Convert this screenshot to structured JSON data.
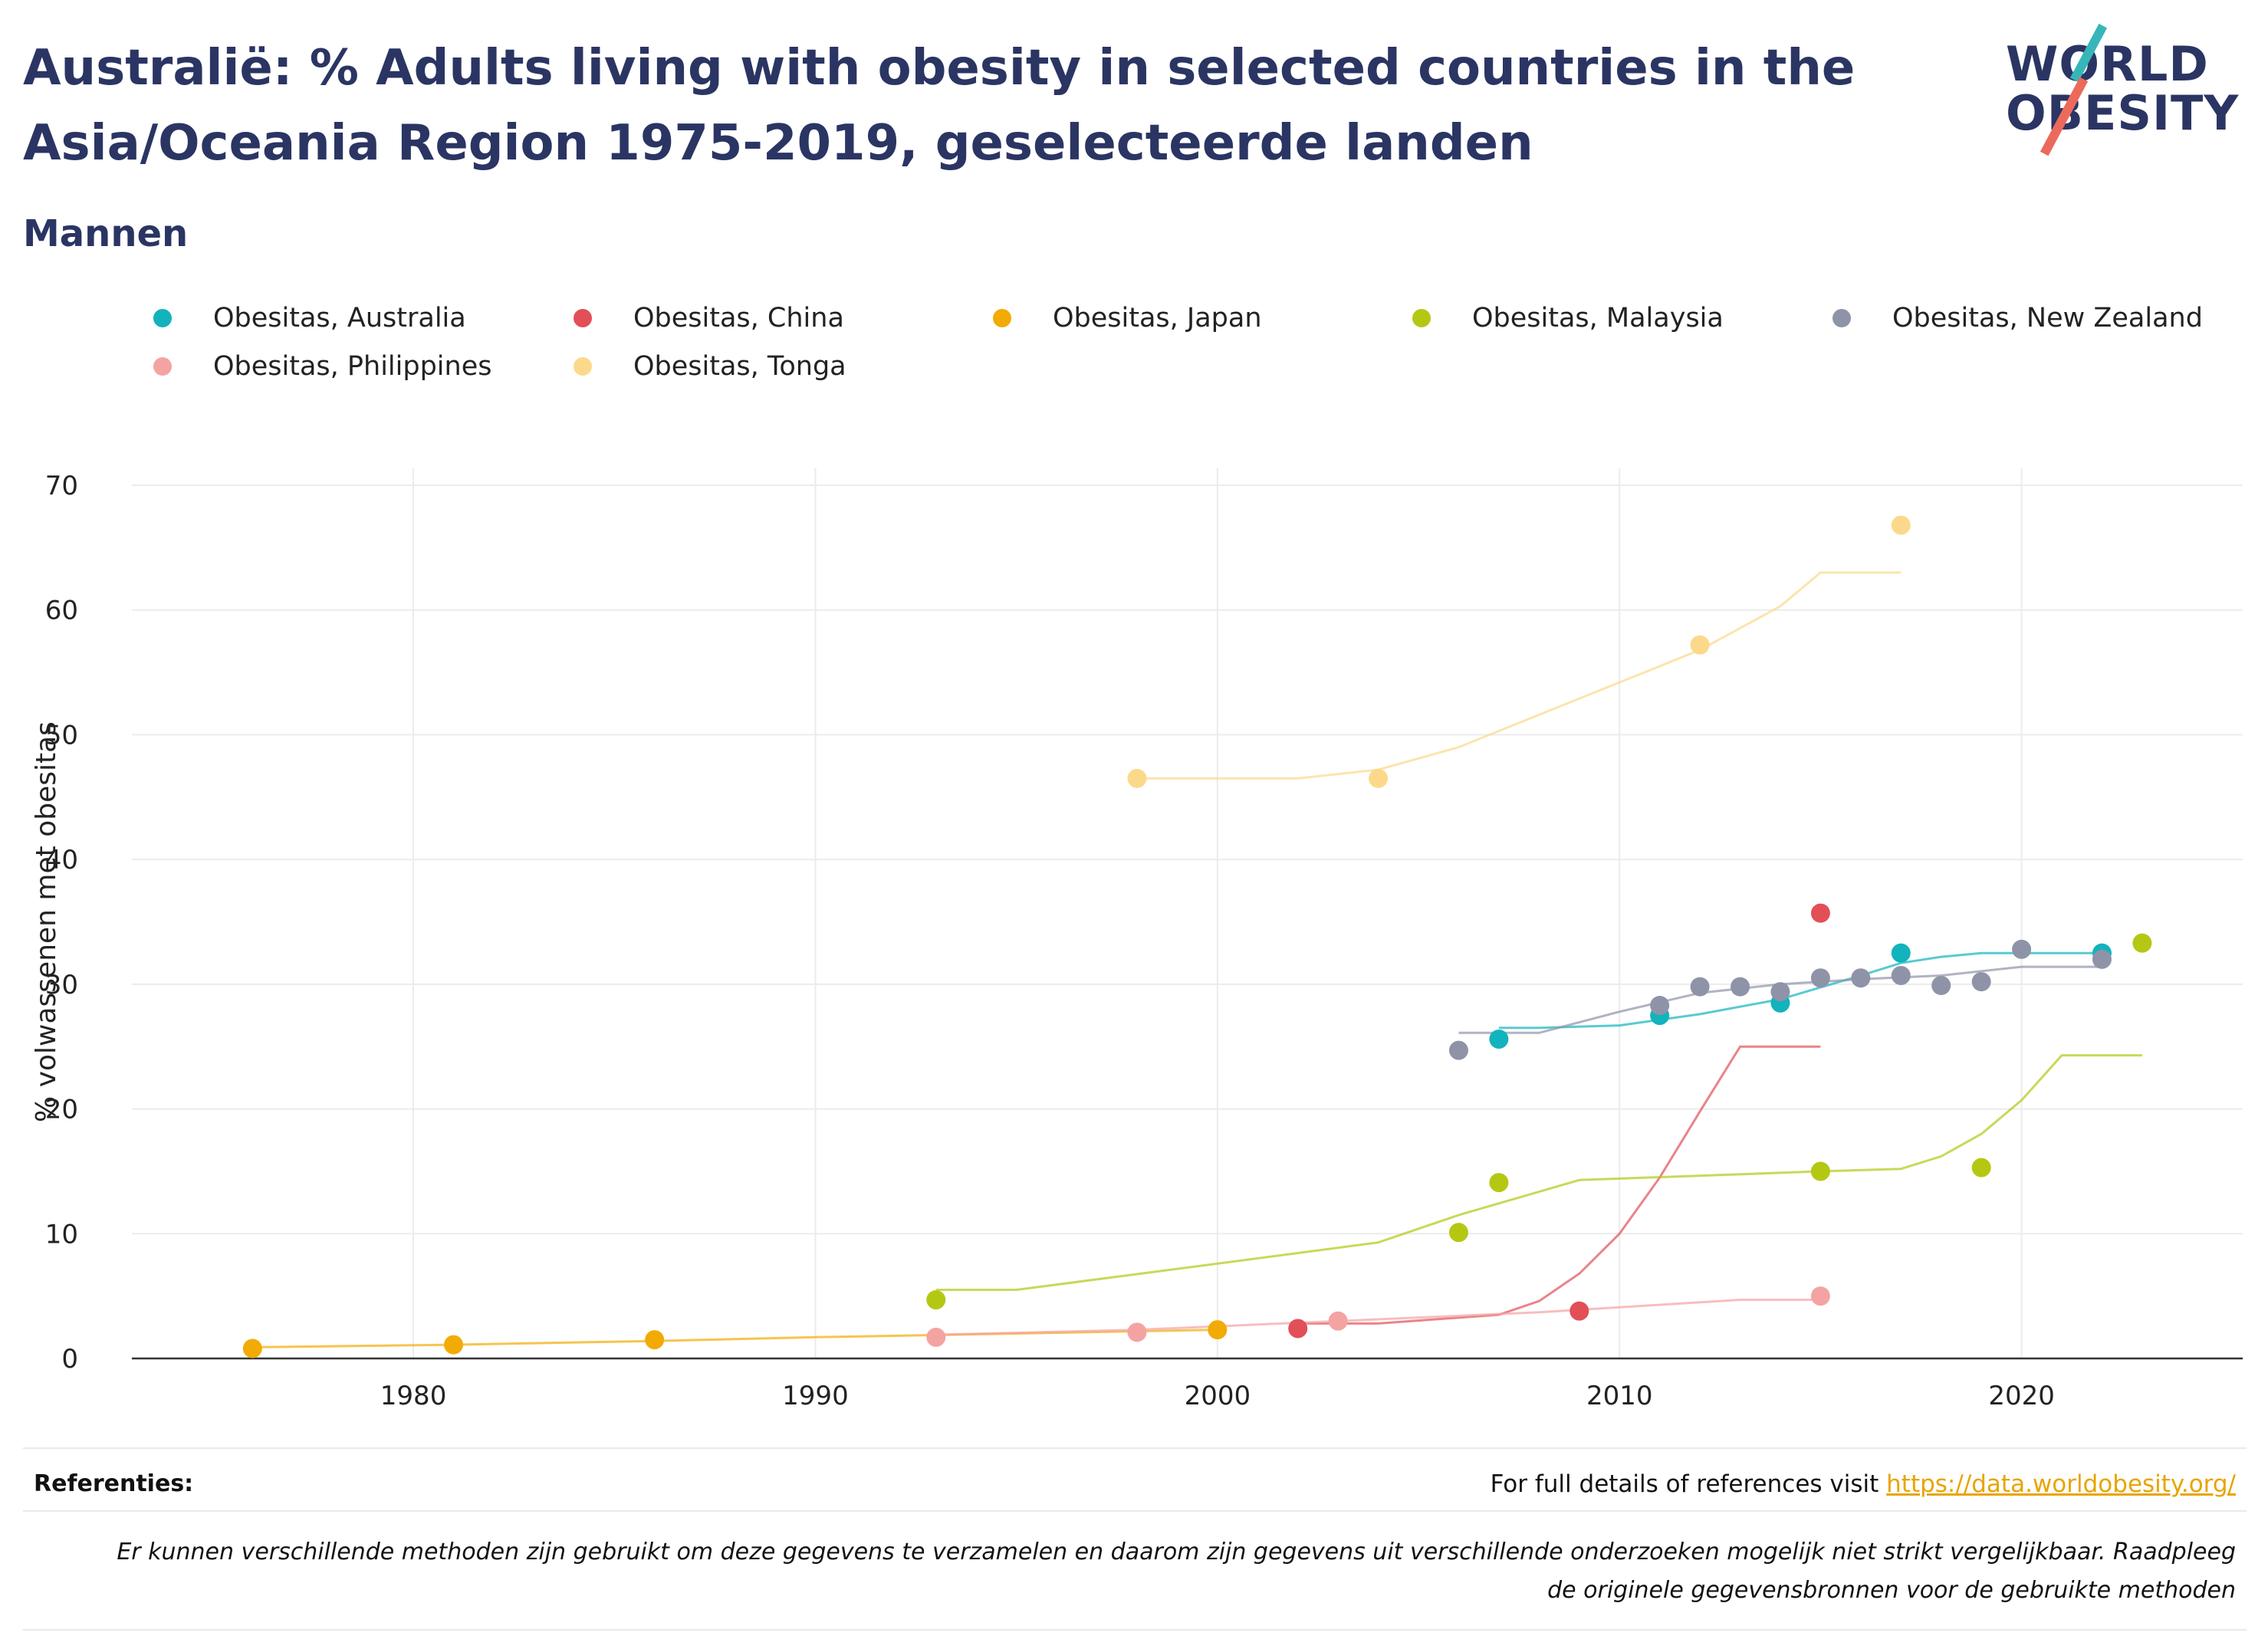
{
  "header": {
    "title": "Australië: % Adults living with obesity in selected countries in the Asia/Oceania Region 1975-2019, geselecteerde landen",
    "subtitle": "Mannen"
  },
  "logo": {
    "line1": "WORLD",
    "line2": "OBESITY"
  },
  "colors": {
    "Australia": "#12b3bd",
    "China": "#e24f57",
    "Japan": "#f2ab05",
    "Malaysia": "#b4c813",
    "New Zealand": "#8e93a8",
    "Philippines": "#f4a3a3",
    "Tonga": "#fcd98a"
  },
  "chart_data": {
    "type": "scatter",
    "xlabel": "",
    "ylabel": "% volwassenen met obesitas",
    "xlim": [
      1973,
      2025.5
    ],
    "ylim": [
      0,
      70
    ],
    "xticks": [
      1980,
      1990,
      2000,
      2010,
      2020
    ],
    "yticks": [
      0,
      10,
      20,
      30,
      40,
      50,
      60,
      70
    ],
    "grid": true,
    "legend_position": "top",
    "series": [
      {
        "name": "Obesitas, Australia",
        "points": [
          [
            2007,
            25.6
          ],
          [
            2011,
            27.5
          ],
          [
            2014,
            28.5
          ],
          [
            2017,
            32.5
          ],
          [
            2022,
            32.5
          ]
        ],
        "trend": [
          [
            2007,
            26.5
          ],
          [
            2008,
            26.5
          ],
          [
            2010,
            26.7
          ],
          [
            2012,
            27.6
          ],
          [
            2014,
            28.8
          ],
          [
            2016,
            30.7
          ],
          [
            2017,
            31.7
          ],
          [
            2018,
            32.2
          ],
          [
            2019,
            32.5
          ],
          [
            2022,
            32.5
          ]
        ]
      },
      {
        "name": "Obesitas, China",
        "points": [
          [
            2002,
            2.4
          ],
          [
            2009,
            3.8
          ],
          [
            2015,
            35.7
          ]
        ],
        "trend": [
          [
            2002,
            2.8
          ],
          [
            2004,
            2.8
          ],
          [
            2007,
            3.5
          ],
          [
            2008,
            4.6
          ],
          [
            2009,
            6.8
          ],
          [
            2010,
            10.0
          ],
          [
            2011,
            14.5
          ],
          [
            2012,
            19.8
          ],
          [
            2013,
            25.0
          ],
          [
            2015,
            25.0
          ]
        ]
      },
      {
        "name": "Obesitas, Japan",
        "points": [
          [
            1976,
            0.8
          ],
          [
            1981,
            1.1
          ],
          [
            1986,
            1.5
          ],
          [
            2000,
            2.3
          ]
        ],
        "trend": [
          [
            1976,
            0.9
          ],
          [
            1981,
            1.1
          ],
          [
            1986,
            1.4
          ],
          [
            1990,
            1.7
          ],
          [
            1995,
            2.0
          ],
          [
            2000,
            2.3
          ]
        ]
      },
      {
        "name": "Obesitas, Malaysia",
        "points": [
          [
            1993,
            4.7
          ],
          [
            2006,
            10.1
          ],
          [
            2007,
            14.1
          ],
          [
            2015,
            15.0
          ],
          [
            2019,
            15.3
          ],
          [
            2023,
            33.3
          ]
        ],
        "trend": [
          [
            1993,
            5.5
          ],
          [
            1995,
            5.5
          ],
          [
            2000,
            7.6
          ],
          [
            2004,
            9.3
          ],
          [
            2006,
            11.5
          ],
          [
            2009,
            14.3
          ],
          [
            2015,
            15.0
          ],
          [
            2017,
            15.2
          ],
          [
            2018,
            16.2
          ],
          [
            2019,
            18.0
          ],
          [
            2020,
            20.7
          ],
          [
            2021,
            24.3
          ],
          [
            2023,
            24.3
          ]
        ]
      },
      {
        "name": "Obesitas, New Zealand",
        "points": [
          [
            2006,
            24.7
          ],
          [
            2011,
            28.3
          ],
          [
            2012,
            29.8
          ],
          [
            2013,
            29.8
          ],
          [
            2014,
            29.4
          ],
          [
            2015,
            30.5
          ],
          [
            2016,
            30.5
          ],
          [
            2017,
            30.7
          ],
          [
            2018,
            29.9
          ],
          [
            2019,
            30.2
          ],
          [
            2020,
            32.8
          ],
          [
            2022,
            32.0
          ]
        ],
        "trend": [
          [
            2006,
            26.1
          ],
          [
            2008,
            26.1
          ],
          [
            2010,
            27.8
          ],
          [
            2012,
            29.3
          ],
          [
            2014,
            30.0
          ],
          [
            2016,
            30.4
          ],
          [
            2018,
            30.7
          ],
          [
            2020,
            31.4
          ],
          [
            2022,
            31.4
          ]
        ]
      },
      {
        "name": "Obesitas, Philippines",
        "points": [
          [
            1993,
            1.7
          ],
          [
            1998,
            2.1
          ],
          [
            2003,
            3.0
          ],
          [
            2015,
            5.0
          ]
        ],
        "trend": [
          [
            1993,
            1.9
          ],
          [
            1998,
            2.3
          ],
          [
            2003,
            3.0
          ],
          [
            2008,
            3.7
          ],
          [
            2013,
            4.7
          ],
          [
            2015,
            4.7
          ]
        ]
      },
      {
        "name": "Obesitas, Tonga",
        "points": [
          [
            1998,
            46.5
          ],
          [
            2004,
            46.5
          ],
          [
            2012,
            57.2
          ],
          [
            2017,
            66.8
          ]
        ],
        "trend": [
          [
            1998,
            46.5
          ],
          [
            2002,
            46.5
          ],
          [
            2004,
            47.2
          ],
          [
            2006,
            49.0
          ],
          [
            2008,
            51.6
          ],
          [
            2010,
            54.2
          ],
          [
            2012,
            56.8
          ],
          [
            2014,
            60.3
          ],
          [
            2015,
            63.0
          ],
          [
            2017,
            63.0
          ]
        ]
      }
    ]
  },
  "footer": {
    "references_label": "Referenties:",
    "full_details_text": "For full details of references visit ",
    "link_text": "https://data.worldobesity.org/",
    "note_line1": "Er kunnen verschillende methoden zijn gebruikt om deze gegevens te verzamelen en daarom zijn gegevens uit verschillende onderzoeken mogelijk niet strikt vergelijkbaar. Raadpleeg",
    "note_line2": "de originele gegevensbronnen voor de gebruikte methoden"
  }
}
